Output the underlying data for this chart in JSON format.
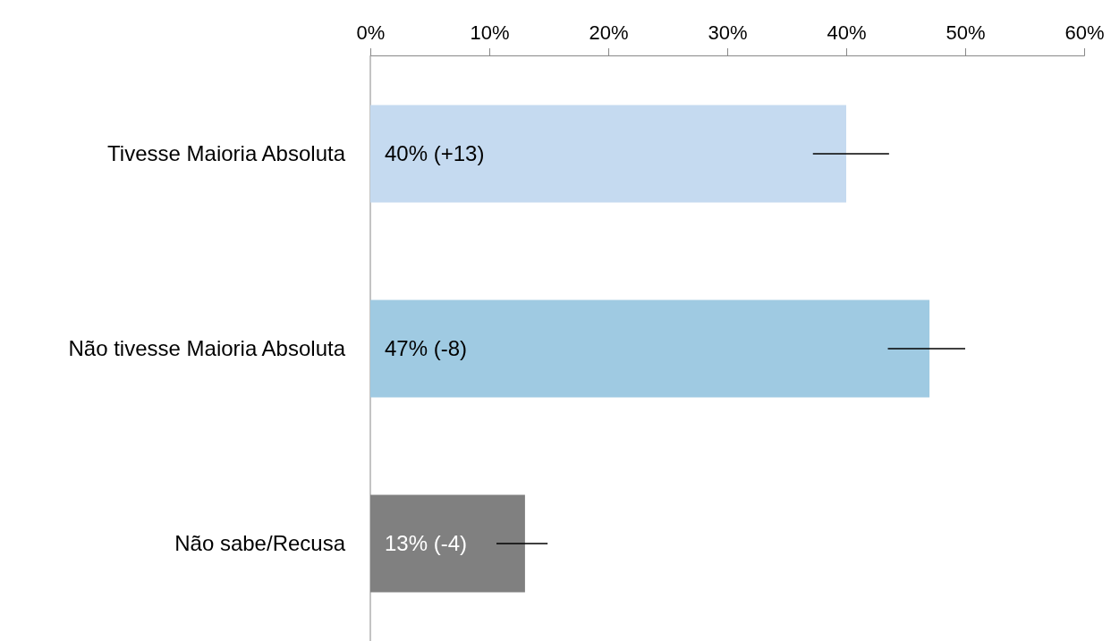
{
  "chart_data": {
    "type": "bar",
    "orientation": "horizontal",
    "categories": [
      "Tivesse Maioria Absoluta",
      "Não tivesse Maioria Absoluta",
      "Não sabe/Recusa"
    ],
    "values": [
      40,
      47,
      13
    ],
    "colors": [
      "#c5daf0",
      "#9fcae2",
      "#808080"
    ],
    "errors": [
      [
        37.2,
        43.6
      ],
      [
        43.5,
        50
      ],
      [
        10.6,
        14.9
      ]
    ],
    "value_labels": [
      "40% (+13)",
      "47% (-8)",
      "13% (-4)"
    ],
    "xlim": [
      0,
      60
    ],
    "xticks": [
      {
        "value": 0,
        "label": "0%"
      },
      {
        "value": 10,
        "label": "10%"
      },
      {
        "value": 20,
        "label": "20%"
      },
      {
        "value": 30,
        "label": "30%"
      },
      {
        "value": 40,
        "label": "40%"
      },
      {
        "value": 50,
        "label": "50%"
      },
      {
        "value": 60,
        "label": "60%"
      }
    ],
    "grid": false
  }
}
